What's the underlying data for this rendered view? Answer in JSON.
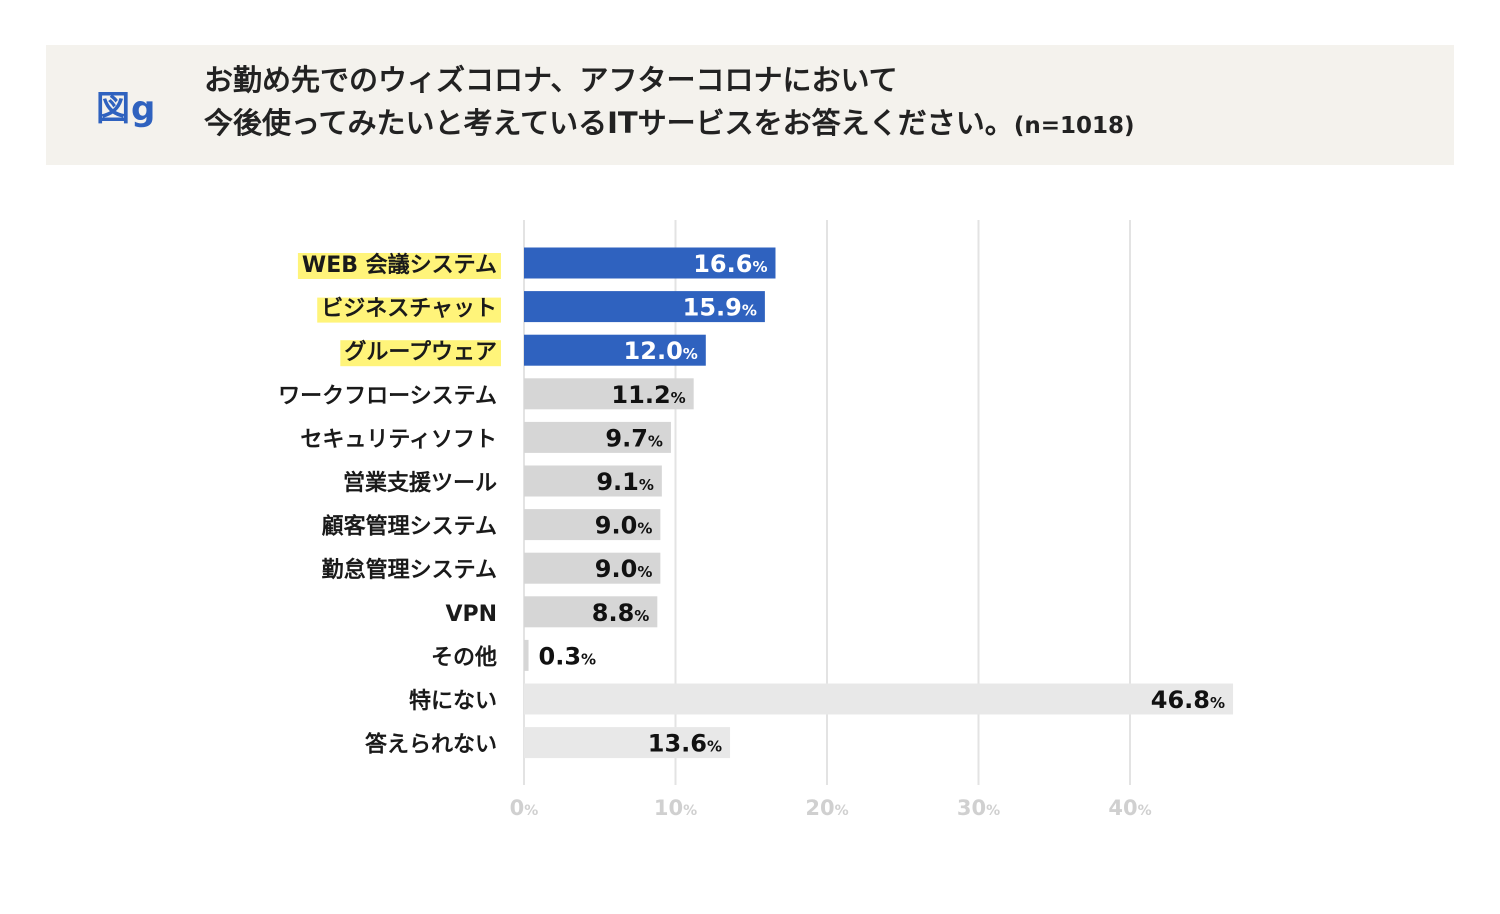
{
  "figure": {
    "label": "図g",
    "title_line1": "お勤め先でのウィズコロナ、アフターコロナにおいて",
    "title_line2": "今後使ってみたいと考えているITサービスをお答えください。",
    "sample_note": "(n=1018)"
  },
  "colors": {
    "highlight_bar": "#2f62bf",
    "normal_bar": "#d6d6d6",
    "special_bar": "#e8e8e8",
    "label_highlight": "#fff47a",
    "grid": "#e3e3e3",
    "axis_tick": "#d0d0d0"
  },
  "chart_data": {
    "type": "bar",
    "orientation": "horizontal",
    "unit": "%",
    "categories": [
      "WEB 会議システム",
      "ビジネスチャット",
      "グループウェア",
      "ワークフローシステム",
      "セキュリティソフト",
      "営業支援ツール",
      "顧客管理システム",
      "勤怠管理システム",
      "VPN",
      "その他",
      "特にない",
      "答えられない"
    ],
    "values": [
      16.6,
      15.9,
      12.0,
      11.2,
      9.7,
      9.1,
      9.0,
      9.0,
      8.8,
      0.3,
      46.8,
      13.6
    ],
    "value_labels": [
      "16.6",
      "15.9",
      "12.0",
      "11.2",
      "9.7",
      "9.1",
      "9.0",
      "9.0",
      "8.8",
      "0.3",
      "46.8",
      "13.6"
    ],
    "highlighted": [
      true,
      true,
      true,
      false,
      false,
      false,
      false,
      false,
      false,
      false,
      false,
      false
    ],
    "bar_style": [
      "highlight",
      "highlight",
      "highlight",
      "normal",
      "normal",
      "normal",
      "normal",
      "normal",
      "normal",
      "normal",
      "special",
      "special"
    ],
    "xlim": [
      0,
      47
    ],
    "xticks": [
      0,
      10,
      20,
      30,
      40
    ],
    "xtick_labels": [
      "0",
      "10",
      "20",
      "30",
      "40"
    ],
    "grid": true
  }
}
